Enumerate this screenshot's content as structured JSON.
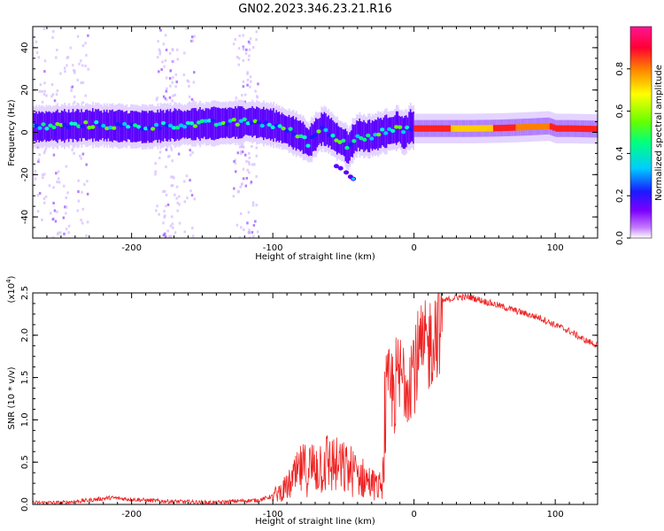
{
  "title": "GN02.2023.346.23.21.R16",
  "chart_data": [
    {
      "type": "heatmap",
      "xlabel": "Height of straight line (km)",
      "ylabel": "Frequency (Hz)",
      "xlim": [
        -270,
        130
      ],
      "ylim": [
        -50,
        50
      ],
      "xticks": [
        -200,
        -100,
        0,
        100
      ],
      "xtick_labels": [
        "-200",
        "-100",
        "0",
        "100"
      ],
      "yticks": [
        -40,
        -20,
        0,
        20,
        40
      ],
      "ytick_labels": [
        "-40",
        "-20",
        "0",
        "20",
        "40"
      ],
      "colorbar": {
        "label": "Normalized spectral amplitude",
        "range": [
          0,
          1
        ],
        "ticks": [
          0,
          0.2,
          0.4,
          0.6,
          0.8
        ],
        "tick_labels": [
          "0.0",
          "0.2",
          "0.4",
          "0.6",
          "0.8"
        ],
        "colors": [
          "#ffffff",
          "#c27bff",
          "#7d00ff",
          "#1a1aff",
          "#00ccff",
          "#00ff80",
          "#66ff00",
          "#ffff00",
          "#ff8000",
          "#ff0033",
          "#ff1493"
        ]
      },
      "ridge": {
        "x": [
          -270,
          -250,
          -230,
          -210,
          -190,
          -170,
          -150,
          -130,
          -115,
          -100,
          -90,
          -80,
          -75,
          -70,
          -65,
          -60,
          -55,
          -50,
          -47,
          -44,
          -40,
          -35,
          -30,
          -25,
          -20,
          -15,
          -12,
          -8,
          -5,
          -3,
          0,
          20,
          40,
          60,
          80,
          95,
          100,
          110,
          130
        ],
        "y": [
          2.5,
          3.0,
          3.5,
          3.0,
          2.5,
          3.5,
          4.0,
          4.5,
          5.0,
          3.5,
          1.0,
          -2.0,
          -5.0,
          -1.0,
          2.0,
          0.0,
          -3.0,
          -5.0,
          -8.0,
          -4.0,
          -1.0,
          -2.0,
          -1.5,
          -0.5,
          0.5,
          1.0,
          2.5,
          -0.5,
          1.0,
          3.0,
          1.8,
          1.8,
          1.8,
          2.0,
          2.5,
          3.0,
          1.8,
          1.8,
          1.5
        ]
      },
      "streaks_x": [
        -265,
        -255,
        -245,
        -235,
        -180,
        -175,
        -170,
        -160,
        -125,
        -120,
        -115
      ]
    },
    {
      "type": "line",
      "xlabel": "Height of straight line (km)",
      "ylabel": "SNR (10 * v/v)",
      "y_multiplier_label": "(x10",
      "y_multiplier_exp": "4",
      "xlim": [
        -270,
        130
      ],
      "ylim": [
        0,
        2.5
      ],
      "xticks": [
        -200,
        -100,
        0,
        100
      ],
      "xtick_labels": [
        "-200",
        "-100",
        "0",
        "100"
      ],
      "yticks": [
        0,
        0.5,
        1.0,
        1.5,
        2.0,
        2.5
      ],
      "ytick_labels": [
        "0.0",
        "0.5",
        "1.0",
        "1.5",
        "2.0",
        "2.5"
      ],
      "color": "#ee2222",
      "series": [
        {
          "x": [
            -270,
            -250,
            -230,
            -215,
            -200,
            -180,
            -160,
            -140,
            -125,
            -110,
            -100,
            -90,
            -85,
            -80,
            -75,
            -70,
            -65,
            -60,
            -55,
            -50,
            -45,
            -40,
            -35,
            -30,
            -25,
            -22,
            -20,
            -18,
            -15,
            -10,
            -5,
            0,
            5,
            10,
            15,
            20,
            30,
            40,
            50,
            60,
            70,
            80,
            90,
            100,
            110,
            120,
            130
          ],
          "y": [
            0.02,
            0.02,
            0.05,
            0.08,
            0.06,
            0.04,
            0.03,
            0.02,
            0.04,
            0.05,
            0.1,
            0.2,
            0.3,
            0.4,
            0.42,
            0.45,
            0.48,
            0.5,
            0.45,
            0.42,
            0.4,
            0.35,
            0.3,
            0.25,
            0.2,
            0.3,
            1.4,
            1.5,
            1.6,
            1.7,
            1.8,
            1.9,
            2.0,
            2.1,
            2.3,
            2.4,
            2.45,
            2.45,
            2.4,
            2.35,
            2.3,
            2.25,
            2.2,
            2.12,
            2.05,
            1.95,
            1.88
          ]
        }
      ]
    }
  ]
}
